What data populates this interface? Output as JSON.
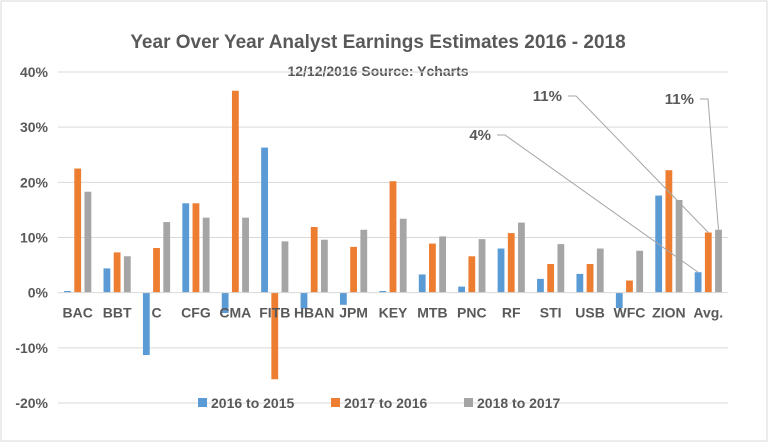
{
  "chart_data": {
    "type": "bar",
    "title": "Year Over Year Analyst Earnings Estimates 2016 - 2018",
    "subtitle": "12/12/2016 Source: Ycharts",
    "categories": [
      "BAC",
      "BBT",
      "C",
      "CFG",
      "CMA",
      "FITB",
      "HBAN",
      "JPM",
      "KEY",
      "MTB",
      "PNC",
      "RF",
      "STI",
      "USB",
      "WFC",
      "ZION",
      "Avg."
    ],
    "series": [
      {
        "name": "2016 to 2015",
        "color": "#5B9BD5",
        "values": [
          0.3,
          4.4,
          -11.3,
          16.2,
          -3.7,
          26.3,
          -2.9,
          -2.2,
          0.3,
          3.3,
          1.1,
          8.0,
          2.5,
          3.4,
          -2.8,
          17.6,
          3.7
        ]
      },
      {
        "name": "2017 to 2016",
        "color": "#ED7D31",
        "values": [
          22.5,
          7.3,
          8.1,
          16.2,
          36.6,
          -15.7,
          11.9,
          8.3,
          20.2,
          8.9,
          6.6,
          10.8,
          5.2,
          5.2,
          2.2,
          22.2,
          10.9
        ]
      },
      {
        "name": "2018 to 2017",
        "color": "#A5A5A5",
        "values": [
          18.3,
          6.6,
          12.8,
          13.6,
          13.6,
          9.3,
          9.6,
          11.4,
          13.4,
          10.2,
          9.7,
          12.7,
          8.8,
          8.0,
          7.6,
          16.8,
          11.4
        ]
      }
    ],
    "ylim": [
      -20,
      40
    ],
    "yticks": [
      -20,
      -10,
      0,
      10,
      20,
      30,
      40
    ],
    "ytick_labels": [
      "-20%",
      "-10%",
      "0%",
      "10%",
      "20%",
      "30%",
      "40%"
    ],
    "grid": true,
    "legend_position": "bottom",
    "annotations": [
      {
        "text": "4%",
        "series": 0,
        "category": "Avg."
      },
      {
        "text": "11%",
        "series": 1,
        "category": "Avg."
      },
      {
        "text": "11%",
        "series": 2,
        "category": "Avg."
      }
    ]
  }
}
